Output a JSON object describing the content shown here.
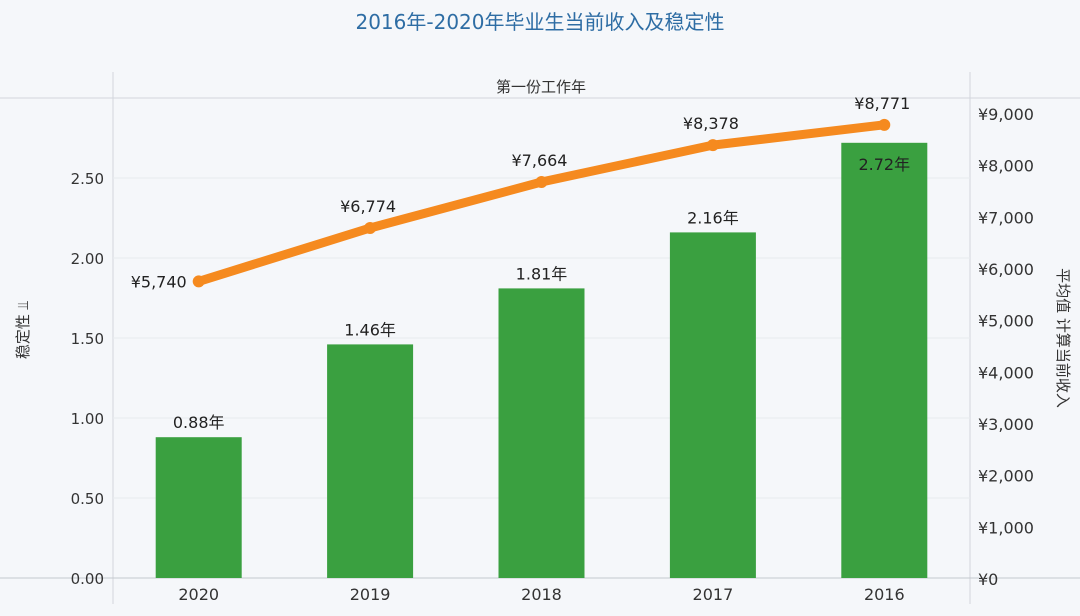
{
  "chart_data": {
    "type": "bar+line",
    "title": "2016年-2020年毕业生当前收入及稳定性",
    "top_axis_label": "第一份工作年",
    "ylabel_left": "稳定性 ⫫",
    "ylabel_right": "平均值 计算当前收入",
    "categories": [
      "2020",
      "2019",
      "2018",
      "2017",
      "2016"
    ],
    "bar_series": {
      "values": [
        0.88,
        1.46,
        1.81,
        2.16,
        2.72
      ],
      "data_labels": [
        "0.88年",
        "1.46年",
        "1.81年",
        "2.16年",
        "2.72年"
      ],
      "color": "#3aa040"
    },
    "line_series": {
      "values": [
        5740,
        6774,
        7664,
        8378,
        8771
      ],
      "data_labels": [
        "¥5,740",
        "¥6,774",
        "¥7,664",
        "¥8,378",
        "¥8,771"
      ],
      "color": "#f58a1f"
    },
    "left_axis": {
      "ylim": [
        0,
        2.56
      ],
      "ticks": [
        0,
        0.5,
        1.0,
        1.5,
        2.0,
        2.5
      ],
      "tick_labels": [
        "0.00",
        "0.50",
        "1.00",
        "1.50",
        "2.00",
        "2.50"
      ]
    },
    "right_axis": {
      "ylim": [
        0,
        9000
      ],
      "ticks": [
        0,
        1000,
        2000,
        3000,
        4000,
        5000,
        6000,
        7000,
        8000,
        9000
      ],
      "tick_labels": [
        "¥0",
        "¥1,000",
        "¥2,000",
        "¥3,000",
        "¥4,000",
        "¥5,000",
        "¥6,000",
        "¥7,000",
        "¥8,000",
        "¥9,000"
      ]
    },
    "grid": true,
    "title_color": "#2e6da4"
  }
}
